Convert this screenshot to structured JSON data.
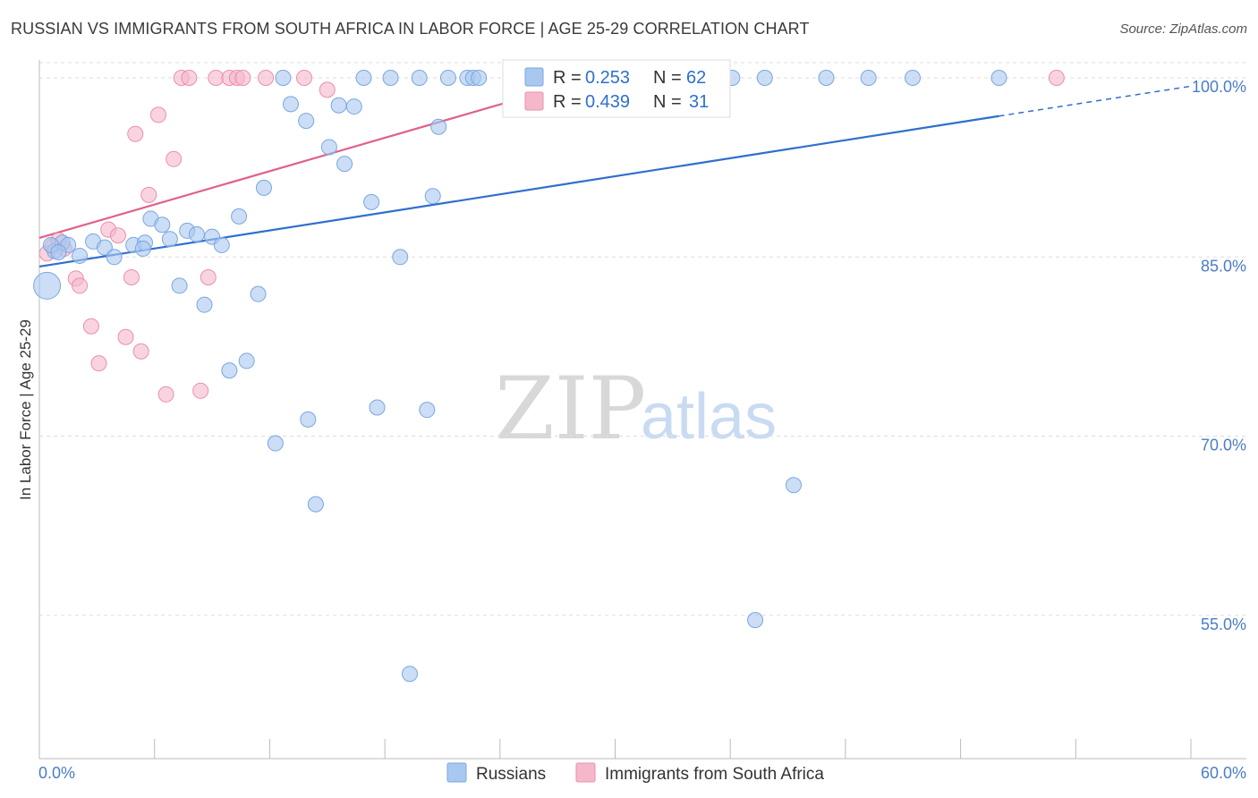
{
  "title": "RUSSIAN VS IMMIGRANTS FROM SOUTH AFRICA IN LABOR FORCE | AGE 25-29 CORRELATION CHART",
  "source": "Source: ZipAtlas.com",
  "watermark": {
    "zip": "ZIP",
    "atlas": "atlas"
  },
  "colors": {
    "blue_fill": "#a9c8f0",
    "blue_stroke": "#7aa6de",
    "blue_line": "#2f6fcc",
    "pink_fill": "#f5b8cb",
    "pink_stroke": "#e98fac",
    "pink_line": "#e0608a",
    "axis_label": "#4a7cc7",
    "grid": "#dddddd"
  },
  "legend": {
    "r_label": "R =",
    "n_label": "N =",
    "rows": [
      {
        "r": "0.253",
        "n": "62"
      },
      {
        "r": "0.439",
        "n": "31"
      }
    ]
  },
  "chart_data": {
    "type": "scatter",
    "title": "RUSSIAN VS IMMIGRANTS FROM SOUTH AFRICA IN LABOR FORCE | AGE 25-29 CORRELATION CHART",
    "xlabel": "",
    "ylabel": "In Labor Force | Age 25-29",
    "xlim": [
      0,
      60
    ],
    "ylim": [
      43,
      101.5
    ],
    "x_tick_labels": [
      "0.0%",
      "60.0%"
    ],
    "y_ticks": [
      100,
      85,
      70,
      55
    ],
    "y_tick_labels": [
      "100.0%",
      "85.0%",
      "70.0%",
      "55.0%"
    ],
    "grid": true,
    "legend_position": "top-center",
    "series": [
      {
        "name": "Russians",
        "trend": {
          "x0": 0,
          "y0": 84.2,
          "x1": 50,
          "y1": 96.8,
          "dash_to_x": 60,
          "dash_to_y": 99.3
        },
        "points": [
          [
            0.4,
            82.6
          ],
          [
            0.8,
            85.5
          ],
          [
            1.2,
            86.2
          ],
          [
            1.5,
            86.0
          ],
          [
            2.1,
            85.1
          ],
          [
            2.8,
            86.3
          ],
          [
            3.4,
            85.8
          ],
          [
            3.9,
            85.0
          ],
          [
            4.9,
            86.0
          ],
          [
            5.5,
            86.2
          ],
          [
            5.4,
            85.7
          ],
          [
            5.8,
            88.2
          ],
          [
            6.4,
            87.7
          ],
          [
            6.8,
            86.5
          ],
          [
            7.3,
            82.6
          ],
          [
            7.7,
            87.2
          ],
          [
            8.2,
            86.9
          ],
          [
            8.6,
            81.0
          ],
          [
            9.0,
            86.7
          ],
          [
            9.5,
            86.0
          ],
          [
            9.9,
            75.5
          ],
          [
            10.4,
            88.4
          ],
          [
            10.8,
            76.3
          ],
          [
            11.4,
            81.9
          ],
          [
            11.7,
            90.8
          ],
          [
            12.3,
            69.4
          ],
          [
            12.7,
            100.0
          ],
          [
            13.1,
            97.8
          ],
          [
            13.9,
            96.4
          ],
          [
            14.0,
            71.4
          ],
          [
            14.4,
            64.3
          ],
          [
            15.1,
            94.2
          ],
          [
            15.6,
            97.7
          ],
          [
            15.9,
            92.8
          ],
          [
            16.4,
            97.6
          ],
          [
            16.9,
            100.0
          ],
          [
            17.3,
            89.6
          ],
          [
            17.6,
            72.4
          ],
          [
            18.3,
            100.0
          ],
          [
            18.8,
            85.0
          ],
          [
            19.3,
            50.1
          ],
          [
            19.8,
            100.0
          ],
          [
            20.2,
            72.2
          ],
          [
            20.5,
            90.1
          ],
          [
            20.8,
            95.9
          ],
          [
            21.3,
            100.0
          ],
          [
            22.3,
            100.0
          ],
          [
            22.6,
            100.0
          ],
          [
            22.9,
            100.0
          ],
          [
            28.5,
            100.0
          ],
          [
            29.7,
            100.0
          ],
          [
            35.4,
            100.0
          ],
          [
            36.1,
            100.0
          ],
          [
            37.3,
            54.6
          ],
          [
            37.8,
            100.0
          ],
          [
            39.3,
            65.9
          ],
          [
            41.0,
            100.0
          ],
          [
            43.2,
            100.0
          ],
          [
            45.5,
            100.0
          ],
          [
            50.0,
            100.0
          ],
          [
            0.6,
            86.0
          ],
          [
            1.0,
            85.4
          ]
        ]
      },
      {
        "name": "Immigrants from South Africa",
        "trend": {
          "x0": 0,
          "y0": 86.6,
          "x1": 29,
          "y1": 100.1
        },
        "points": [
          [
            0.4,
            85.3
          ],
          [
            0.7,
            85.9
          ],
          [
            1.0,
            86.4
          ],
          [
            1.3,
            85.7
          ],
          [
            1.9,
            83.2
          ],
          [
            2.1,
            82.6
          ],
          [
            2.7,
            79.2
          ],
          [
            3.1,
            76.1
          ],
          [
            3.6,
            87.3
          ],
          [
            4.1,
            86.8
          ],
          [
            4.5,
            78.3
          ],
          [
            4.8,
            83.3
          ],
          [
            5.0,
            95.3
          ],
          [
            5.3,
            77.1
          ],
          [
            5.7,
            90.2
          ],
          [
            6.2,
            96.9
          ],
          [
            6.6,
            73.5
          ],
          [
            7.0,
            93.2
          ],
          [
            7.4,
            100.0
          ],
          [
            7.8,
            100.0
          ],
          [
            8.4,
            73.8
          ],
          [
            8.8,
            83.3
          ],
          [
            9.2,
            100.0
          ],
          [
            9.9,
            100.0
          ],
          [
            10.3,
            100.0
          ],
          [
            10.6,
            100.0
          ],
          [
            11.8,
            100.0
          ],
          [
            13.8,
            100.0
          ],
          [
            15.0,
            99.0
          ],
          [
            28.9,
            100.0
          ],
          [
            53.0,
            100.0
          ]
        ]
      }
    ]
  },
  "bottom_legend": [
    "Russians",
    "Immigrants from South Africa"
  ]
}
